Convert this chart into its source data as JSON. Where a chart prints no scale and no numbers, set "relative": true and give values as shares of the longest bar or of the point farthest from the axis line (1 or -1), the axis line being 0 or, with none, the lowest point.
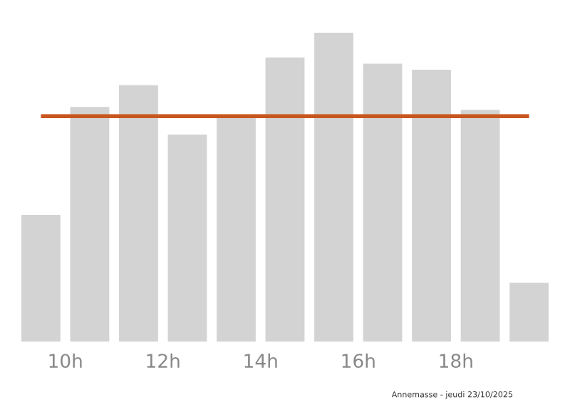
{
  "chart_data": {
    "type": "bar",
    "relative": true,
    "x": [
      9.5,
      10.5,
      11.5,
      12.5,
      13.5,
      14.5,
      15.5,
      16.5,
      17.5,
      18.5,
      19.5
    ],
    "values": [
      0.41,
      0.76,
      0.83,
      0.67,
      0.73,
      0.92,
      1,
      0.9,
      0.88,
      0.75,
      0.19
    ],
    "color": "#d3d3d3",
    "xlim": [
      9.1,
      19.9
    ],
    "xticks": [
      {
        "value": 10,
        "label": "10h"
      },
      {
        "value": 12,
        "label": "12h"
      },
      {
        "value": 14,
        "label": "14h"
      },
      {
        "value": 16,
        "label": "16h"
      },
      {
        "value": 18,
        "label": "18h"
      }
    ],
    "ref_lines": [
      {
        "axis": "y",
        "value": 0.73,
        "label": null,
        "color": "#c8561e"
      }
    ],
    "grid": false,
    "legend": false,
    "annotations": [
      "Annemasse - jeudi 23/10/2025"
    ]
  }
}
